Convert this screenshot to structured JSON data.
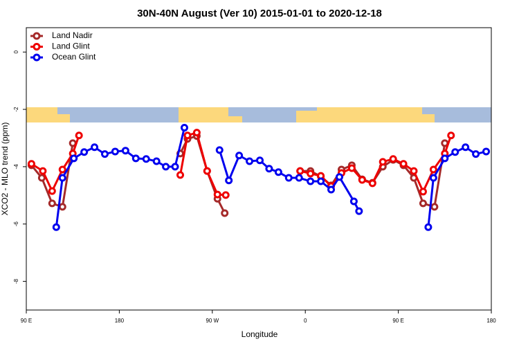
{
  "chart_data": {
    "type": "line",
    "title": "30N-40N August (Ver 10)   2015-01-01 to 2020-12-18",
    "x_label": "Longitude",
    "y_label": "XCO2 - MLO trend (ppm)",
    "xlim": [
      90,
      540
    ],
    "ylim": [
      -9,
      0.85
    ],
    "xticks": [
      {
        "value": 90,
        "label": "90 E"
      },
      180,
      {
        "value": 270,
        "label": "90 W"
      },
      {
        "value": 360,
        "label": "0"
      },
      {
        "value": 450,
        "label": "90 E"
      },
      {
        "value": 540,
        "label": "180"
      }
    ],
    "yticks": [
      0,
      -2,
      -4,
      -6,
      -8
    ],
    "legend": "top-left",
    "series": [
      {
        "name": "Land Nadir",
        "color": "#a52a2a",
        "x": [
          95,
          105,
          115,
          125,
          135,
          null,
          239,
          246,
          255,
          265,
          275,
          282,
          null,
          355,
          365,
          375,
          385,
          395,
          405,
          415,
          425,
          435,
          445,
          455,
          465,
          474,
          485,
          495
        ],
        "values": [
          -3.95,
          -4.39,
          -5.28,
          -5.4,
          -3.18,
          null,
          -3.54,
          -3.03,
          -2.93,
          -4.15,
          -5.12,
          -5.62,
          null,
          -4.15,
          -4.15,
          -4.34,
          -4.65,
          -4.1,
          -3.95,
          -4.44,
          -4.56,
          -4.0,
          -3.76,
          -3.95,
          -4.39,
          -5.28,
          -5.4,
          -3.18
        ]
      },
      {
        "name": "Land Glint",
        "color": "#ee0000",
        "x": [
          95,
          106,
          115,
          125,
          135,
          141,
          null,
          239,
          246,
          255,
          265,
          275,
          283,
          null,
          355,
          365,
          375,
          385,
          395,
          405,
          415,
          425,
          435,
          445,
          455,
          465,
          474,
          484,
          495,
          501
        ],
        "values": [
          -3.9,
          -4.15,
          -4.85,
          -4.1,
          -3.54,
          -2.91,
          null,
          -4.29,
          -2.91,
          -2.81,
          -4.15,
          -4.97,
          -4.99,
          null,
          -4.15,
          -4.24,
          -4.32,
          -4.68,
          -4.22,
          -4.05,
          -4.46,
          -4.58,
          -3.83,
          -3.73,
          -3.9,
          -4.15,
          -4.87,
          -4.1,
          -3.54,
          -2.91
        ]
      },
      {
        "name": "Ocean Glint",
        "color": "#0000ee",
        "x": [
          119,
          125,
          136,
          146,
          156,
          166,
          176,
          186,
          196,
          206,
          216,
          225,
          234,
          243,
          null,
          277,
          286,
          296,
          306,
          316,
          325,
          334,
          344,
          354,
          365,
          375,
          385,
          393,
          407,
          412,
          null,
          479,
          484,
          495,
          505,
          515,
          525,
          535
        ],
        "values": [
          -6.11,
          -4.39,
          -3.71,
          -3.49,
          -3.32,
          -3.56,
          -3.47,
          -3.44,
          -3.71,
          -3.73,
          -3.81,
          -4.0,
          -4.0,
          -2.64,
          null,
          -3.42,
          -4.48,
          -3.61,
          -3.81,
          -3.78,
          -4.07,
          -4.19,
          -4.39,
          -4.39,
          -4.51,
          -4.51,
          -4.8,
          -4.36,
          -5.21,
          -5.55,
          null,
          -6.11,
          -4.39,
          -3.71,
          -3.49,
          -3.32,
          -3.56,
          -3.47
        ]
      }
    ]
  }
}
